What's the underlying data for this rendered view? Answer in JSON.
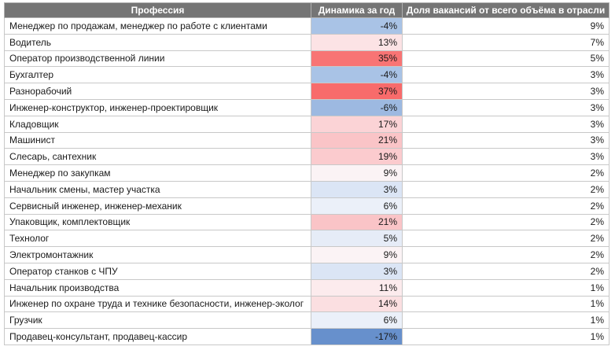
{
  "table": {
    "headers": {
      "profession": "Профессия",
      "dynamics": "Динамика за год",
      "share": "Доля вакансий от всего объёма в отрасли"
    },
    "rows": [
      {
        "profession": "Менеджер по продажам, менеджер по работе с клиентами",
        "dynamics": "-4%",
        "share": "9%",
        "color": "#a9c3e6"
      },
      {
        "profession": "Водитель",
        "dynamics": "13%",
        "share": "7%",
        "color": "#fce3e5"
      },
      {
        "profession": "Оператор производственной линии",
        "dynamics": "35%",
        "share": "5%",
        "color": "#f87474"
      },
      {
        "profession": "Бухгалтер",
        "dynamics": "-4%",
        "share": "3%",
        "color": "#a9c3e6"
      },
      {
        "profession": "Разнорабочий",
        "dynamics": "37%",
        "share": "3%",
        "color": "#f86b6b"
      },
      {
        "profession": "Инженер-конструктор, инженер-проектировщик",
        "dynamics": "-6%",
        "share": "3%",
        "color": "#9db9e1"
      },
      {
        "profession": "Кладовщик",
        "dynamics": "17%",
        "share": "3%",
        "color": "#fbd3d6"
      },
      {
        "profession": "Машинист",
        "dynamics": "21%",
        "share": "3%",
        "color": "#fac4c7"
      },
      {
        "profession": "Слесарь, сантехник",
        "dynamics": "19%",
        "share": "3%",
        "color": "#fbcbce"
      },
      {
        "profession": "Менеджер по закупкам",
        "dynamics": "9%",
        "share": "2%",
        "color": "#fbf3f5"
      },
      {
        "profession": "Начальник смены, мастер участка",
        "dynamics": "3%",
        "share": "2%",
        "color": "#dbe5f5"
      },
      {
        "profession": "Сервисный инженер, инженер-механик",
        "dynamics": "6%",
        "share": "2%",
        "color": "#ebf0f9"
      },
      {
        "profession": "Упаковщик, комплектовщик",
        "dynamics": "21%",
        "share": "2%",
        "color": "#fac4c7"
      },
      {
        "profession": "Технолог",
        "dynamics": "5%",
        "share": "2%",
        "color": "#e6ecf7"
      },
      {
        "profession": "Электромонтажник",
        "dynamics": "9%",
        "share": "2%",
        "color": "#fbf3f5"
      },
      {
        "profession": "Оператор станков с ЧПУ",
        "dynamics": "3%",
        "share": "2%",
        "color": "#dbe5f5"
      },
      {
        "profession": "Начальник производства",
        "dynamics": "11%",
        "share": "1%",
        "color": "#fcebed"
      },
      {
        "profession": "Инженер по охране труда и технике безопасности, инженер-эколог",
        "dynamics": "14%",
        "share": "1%",
        "color": "#fbdfe1"
      },
      {
        "profession": "Грузчик",
        "dynamics": "6%",
        "share": "1%",
        "color": "#ebf0f9"
      },
      {
        "profession": "Продавец-консультант, продавец-кассир",
        "dynamics": "-17%",
        "share": "1%",
        "color": "#6790cc"
      }
    ]
  }
}
